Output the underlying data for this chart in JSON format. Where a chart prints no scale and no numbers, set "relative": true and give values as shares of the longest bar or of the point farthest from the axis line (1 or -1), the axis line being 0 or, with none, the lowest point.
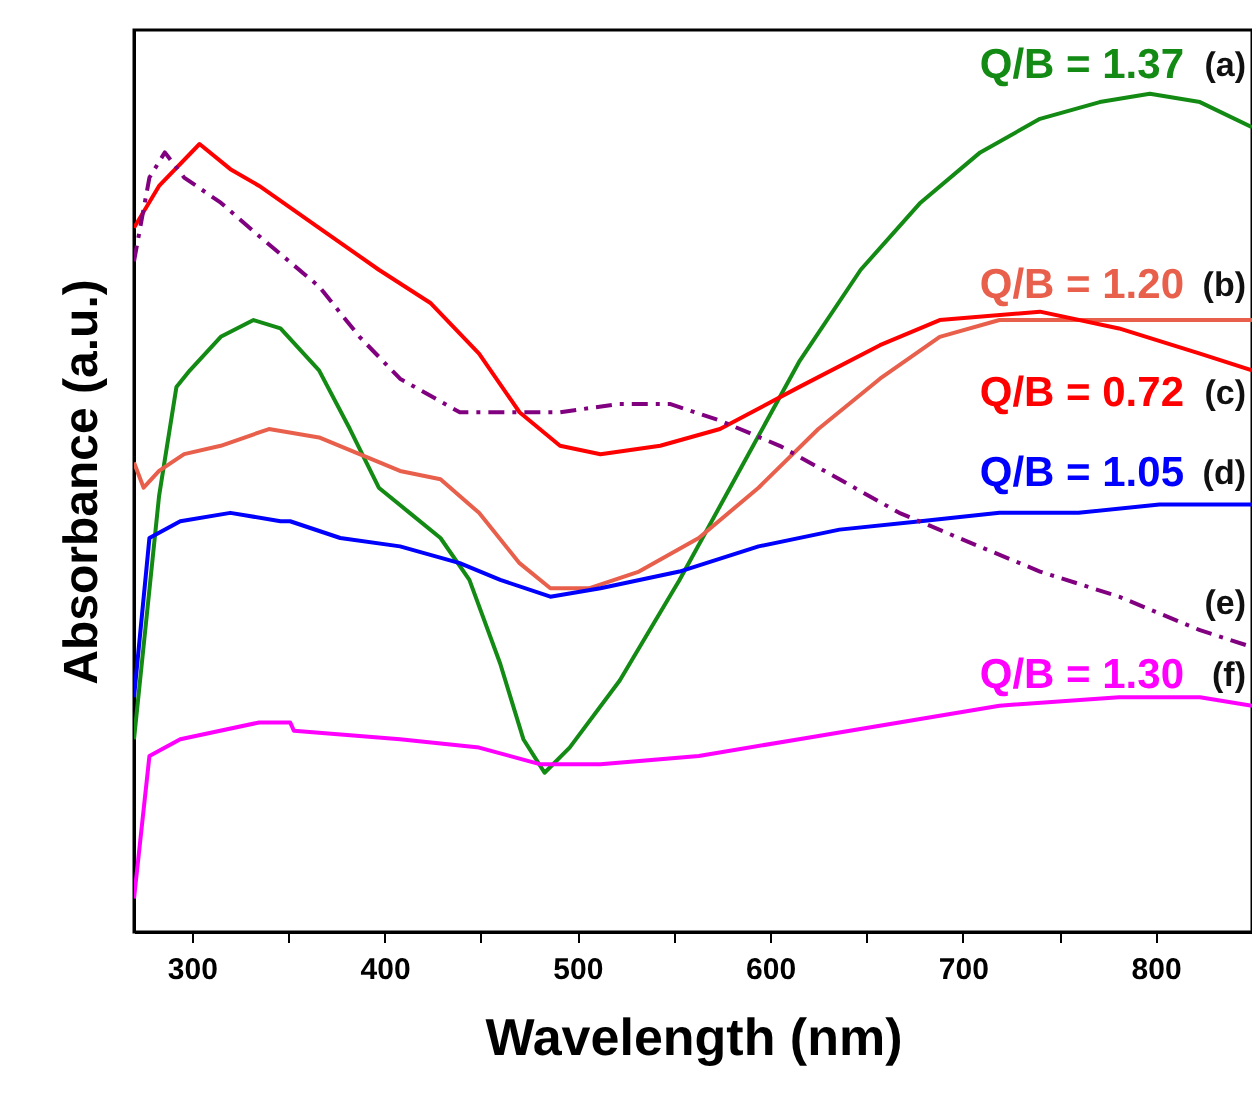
{
  "chart_data": {
    "type": "line",
    "xlabel": "Wavelength (nm)",
    "ylabel": "Absorbance (a.u.)",
    "relative": true,
    "xlim": [
      270,
      850
    ],
    "xticks": [
      300,
      {
        "value": 350,
        "label": null
      },
      400,
      {
        "value": 450,
        "label": null
      },
      500,
      {
        "value": 550,
        "label": null
      },
      600,
      {
        "value": 650,
        "label": null
      },
      700,
      {
        "value": 750,
        "label": null
      },
      800
    ],
    "series": [
      {
        "name": "Q/B = 1.37 (a)",
        "color": "#138a13",
        "line_style": "solid",
        "x": [
          270,
          283,
          292,
          299,
          315,
          332,
          346,
          366,
          382,
          397,
          413,
          429,
          444,
          460,
          472,
          483,
          496,
          522,
          553,
          584,
          615,
          647,
          678,
          709,
          740,
          771,
          797,
          823,
          850
        ],
        "values": [
          0.23,
          0.52,
          0.65,
          0.67,
          0.71,
          0.73,
          0.72,
          0.67,
          0.6,
          0.53,
          0.5,
          0.47,
          0.42,
          0.32,
          0.23,
          0.19,
          0.22,
          0.3,
          0.42,
          0.55,
          0.68,
          0.79,
          0.87,
          0.93,
          0.97,
          0.99,
          1.0,
          0.99,
          0.96
        ]
      },
      {
        "name": "Q/B = 1.20 (b)",
        "color": "#e8604c",
        "line_style": "solid",
        "x": [
          270,
          275,
          283,
          296,
          315,
          340,
          366,
          387,
          408,
          429,
          449,
          470,
          486,
          506,
          532,
          563,
          594,
          625,
          657,
          688,
          719,
          750,
          791,
          823,
          850
        ],
        "values": [
          0.56,
          0.53,
          0.55,
          0.57,
          0.58,
          0.6,
          0.59,
          0.57,
          0.55,
          0.54,
          0.5,
          0.44,
          0.41,
          0.41,
          0.43,
          0.47,
          0.53,
          0.6,
          0.66,
          0.71,
          0.73,
          0.73,
          0.73,
          0.73,
          0.73
        ]
      },
      {
        "name": "Q/B = 0.72 (c)",
        "color": "#ff0000",
        "line_style": "solid",
        "x": [
          270,
          283,
          304,
          320,
          335,
          366,
          397,
          424,
          449,
          470,
          491,
          512,
          543,
          574,
          615,
          657,
          688,
          740,
          781,
          823,
          850
        ],
        "values": [
          0.84,
          0.89,
          0.94,
          0.91,
          0.89,
          0.84,
          0.79,
          0.75,
          0.69,
          0.62,
          0.58,
          0.57,
          0.58,
          0.6,
          0.65,
          0.7,
          0.73,
          0.74,
          0.72,
          0.69,
          0.67
        ]
      },
      {
        "name": "Q/B = 1.05 (d)",
        "color": "#0000ff",
        "line_style": "solid",
        "x": [
          270,
          278,
          294,
          320,
          346,
          351,
          377,
          408,
          439,
          460,
          486,
          512,
          553,
          594,
          636,
          678,
          719,
          760,
          802,
          850
        ],
        "values": [
          0.28,
          0.47,
          0.49,
          0.5,
          0.49,
          0.49,
          0.47,
          0.46,
          0.44,
          0.42,
          0.4,
          0.41,
          0.43,
          0.46,
          0.48,
          0.49,
          0.5,
          0.5,
          0.51,
          0.51
        ]
      },
      {
        "name": "(e)",
        "color": "#800080",
        "line_style": "dashed",
        "x": [
          270,
          278,
          286,
          296,
          315,
          335,
          366,
          387,
          408,
          439,
          460,
          491,
          522,
          548,
          574,
          605,
          636,
          667,
          698,
          740,
          781,
          823,
          850
        ],
        "values": [
          0.8,
          0.9,
          0.93,
          0.9,
          0.87,
          0.83,
          0.77,
          0.71,
          0.66,
          0.62,
          0.62,
          0.62,
          0.63,
          0.63,
          0.61,
          0.58,
          0.54,
          0.5,
          0.47,
          0.43,
          0.4,
          0.36,
          0.34
        ]
      },
      {
        "name": "Q/B = 1.30 (f)",
        "color": "#ff00ff",
        "line_style": "solid",
        "x": [
          270,
          278,
          294,
          335,
          351,
          353,
          408,
          449,
          481,
          512,
          563,
          615,
          667,
          719,
          781,
          823,
          850
        ],
        "values": [
          0.04,
          0.21,
          0.23,
          0.25,
          0.25,
          0.24,
          0.23,
          0.22,
          0.2,
          0.2,
          0.21,
          0.23,
          0.25,
          0.27,
          0.28,
          0.28,
          0.27
        ]
      }
    ]
  }
}
